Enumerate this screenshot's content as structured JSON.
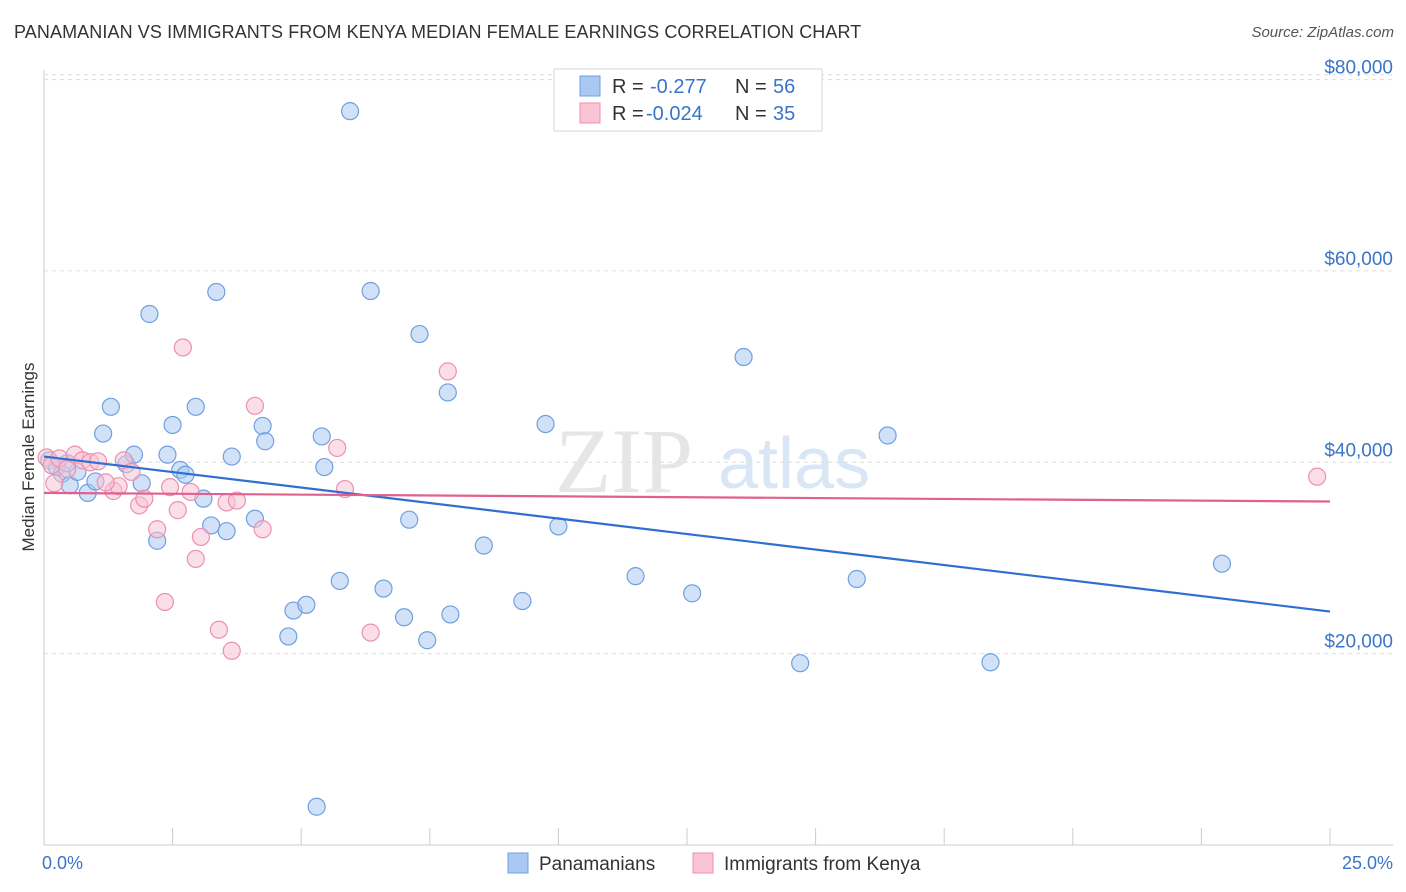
{
  "header": {
    "title": "PANAMANIAN VS IMMIGRANTS FROM KENYA MEDIAN FEMALE EARNINGS CORRELATION CHART",
    "source": "Source: ZipAtlas.com"
  },
  "watermark": {
    "zip": "ZIP",
    "atlas": "atlas"
  },
  "stats": [
    {
      "r_label": "R =",
      "r_value": "-0.277",
      "n_label": "N =",
      "n_value": "56",
      "color": "#a9c8f2",
      "stroke": "#6fa0e0"
    },
    {
      "r_label": "R =",
      "r_value": "-0.024",
      "n_label": "N =",
      "n_value": "35",
      "color": "#f8c4d6",
      "stroke": "#ee8fb0"
    }
  ],
  "chart_data": {
    "type": "scatter",
    "title": "PANAMANIAN VS IMMIGRANTS FROM KENYA MEDIAN FEMALE EARNINGS CORRELATION CHART",
    "xlabel": "",
    "ylabel": "Median Female Earnings",
    "xlim": [
      0,
      25
    ],
    "ylim": [
      0,
      81000
    ],
    "x_tick_labels": [
      "0.0%",
      "25.0%"
    ],
    "y_ticks": [
      20000,
      40000,
      60000,
      80000
    ],
    "y_tick_labels": [
      "$20,000",
      "$40,000",
      "$60,000",
      "$80,000"
    ],
    "legend_position": "bottom-center",
    "series": [
      {
        "name": "Panamanians",
        "color": "#a9c8f2",
        "stroke": "#6fa0e0",
        "trend": {
          "x": [
            0,
            25
          ],
          "y": [
            40600,
            24400
          ],
          "color": "#2f6fd0"
        },
        "points": [
          [
            0.1,
            40200
          ],
          [
            0.25,
            39500
          ],
          [
            0.35,
            38800
          ],
          [
            0.5,
            37600
          ],
          [
            0.65,
            39000
          ],
          [
            0.85,
            36800
          ],
          [
            1.0,
            38000
          ],
          [
            1.15,
            43000
          ],
          [
            1.3,
            45800
          ],
          [
            1.6,
            39800
          ],
          [
            1.75,
            40800
          ],
          [
            1.9,
            37800
          ],
          [
            2.05,
            55500
          ],
          [
            2.2,
            31800
          ],
          [
            2.4,
            40800
          ],
          [
            2.5,
            43900
          ],
          [
            2.65,
            39200
          ],
          [
            2.75,
            38700
          ],
          [
            2.95,
            45800
          ],
          [
            3.1,
            36200
          ],
          [
            3.25,
            33400
          ],
          [
            3.35,
            57800
          ],
          [
            3.55,
            32800
          ],
          [
            3.65,
            40600
          ],
          [
            4.1,
            34100
          ],
          [
            4.25,
            43800
          ],
          [
            4.3,
            42200
          ],
          [
            4.75,
            21800
          ],
          [
            4.85,
            24500
          ],
          [
            5.1,
            25100
          ],
          [
            5.3,
            4000
          ],
          [
            5.4,
            42700
          ],
          [
            5.45,
            39500
          ],
          [
            5.75,
            27600
          ],
          [
            5.95,
            76700
          ],
          [
            6.35,
            57900
          ],
          [
            6.6,
            26800
          ],
          [
            7.0,
            23800
          ],
          [
            7.1,
            34000
          ],
          [
            7.3,
            53400
          ],
          [
            7.45,
            21400
          ],
          [
            7.85,
            47300
          ],
          [
            7.9,
            24100
          ],
          [
            8.55,
            31300
          ],
          [
            9.3,
            25500
          ],
          [
            9.75,
            44000
          ],
          [
            10.0,
            33300
          ],
          [
            11.5,
            28100
          ],
          [
            12.6,
            26300
          ],
          [
            13.6,
            51000
          ],
          [
            14.7,
            19000
          ],
          [
            15.8,
            27800
          ],
          [
            16.4,
            42800
          ],
          [
            18.4,
            19100
          ],
          [
            22.9,
            29400
          ],
          [
            0.45,
            39900
          ]
        ]
      },
      {
        "name": "Immigrants from Kenya",
        "color": "#f8c4d6",
        "stroke": "#ee8fb0",
        "trend": {
          "x": [
            0,
            25
          ],
          "y": [
            36800,
            35900
          ],
          "color": "#e0608f"
        },
        "points": [
          [
            0.05,
            40500
          ],
          [
            0.15,
            39700
          ],
          [
            0.3,
            40400
          ],
          [
            0.45,
            39300
          ],
          [
            0.6,
            40800
          ],
          [
            0.75,
            40200
          ],
          [
            0.9,
            40000
          ],
          [
            1.05,
            40100
          ],
          [
            1.35,
            37000
          ],
          [
            1.45,
            37500
          ],
          [
            1.55,
            40200
          ],
          [
            1.7,
            39000
          ],
          [
            1.85,
            35500
          ],
          [
            1.95,
            36200
          ],
          [
            2.2,
            33000
          ],
          [
            2.35,
            25400
          ],
          [
            2.45,
            37400
          ],
          [
            2.6,
            35000
          ],
          [
            2.7,
            52000
          ],
          [
            2.85,
            36900
          ],
          [
            2.95,
            29900
          ],
          [
            3.05,
            32200
          ],
          [
            3.4,
            22500
          ],
          [
            3.55,
            35800
          ],
          [
            3.65,
            20300
          ],
          [
            3.75,
            36000
          ],
          [
            4.1,
            45900
          ],
          [
            4.25,
            33000
          ],
          [
            5.7,
            41500
          ],
          [
            5.85,
            37200
          ],
          [
            6.35,
            22200
          ],
          [
            7.85,
            49500
          ],
          [
            0.2,
            37800
          ],
          [
            1.2,
            37900
          ],
          [
            24.75,
            38500
          ]
        ]
      }
    ]
  }
}
